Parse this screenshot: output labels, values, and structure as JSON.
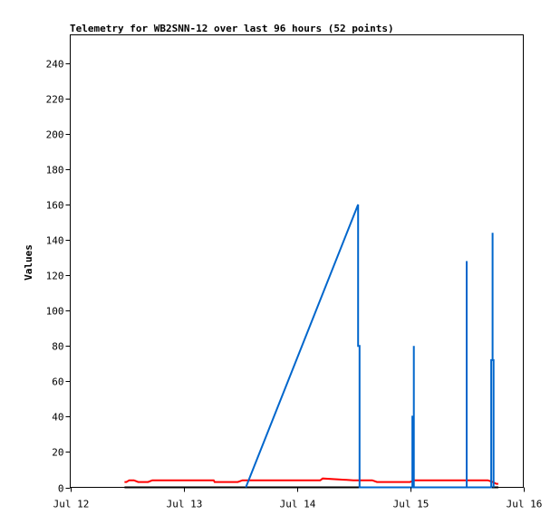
{
  "chart_data": {
    "type": "line",
    "title": "Telemetry for WB2SNN-12 over last 96 hours (52 points)",
    "xlabel": "",
    "ylabel": "Values",
    "ylim": [
      0,
      256
    ],
    "xlim": [
      0,
      96
    ],
    "y_ticks": [
      0,
      20,
      40,
      60,
      80,
      100,
      120,
      140,
      160,
      180,
      200,
      220,
      240
    ],
    "x_ticks": [
      {
        "pos": 0,
        "label": "Jul 12"
      },
      {
        "pos": 24,
        "label": "Jul 13"
      },
      {
        "pos": 48,
        "label": "Jul 14"
      },
      {
        "pos": 72,
        "label": "Jul 15"
      },
      {
        "pos": 96,
        "label": "Jul 16"
      }
    ],
    "grid": false,
    "colors": {
      "black": "#000000",
      "red": "#ff0000",
      "blue": "#0066cc"
    },
    "series": [
      {
        "color": "#000000",
        "points": [
          [
            11.5,
            0
          ],
          [
            90.7,
            0
          ]
        ]
      },
      {
        "color": "#ff0000",
        "points": [
          [
            11.5,
            3
          ],
          [
            11.9,
            3
          ],
          [
            12.5,
            4
          ],
          [
            13.5,
            4
          ],
          [
            14.4,
            3
          ],
          [
            16.5,
            3
          ],
          [
            17.4,
            4
          ],
          [
            24,
            4
          ],
          [
            30.4,
            4
          ],
          [
            30.6,
            3
          ],
          [
            35.5,
            3
          ],
          [
            36.5,
            4
          ],
          [
            48,
            4
          ],
          [
            53,
            4
          ],
          [
            53.5,
            5
          ],
          [
            60,
            4
          ],
          [
            64,
            4
          ],
          [
            65,
            3
          ],
          [
            72,
            3
          ],
          [
            73,
            4
          ],
          [
            84,
            4
          ],
          [
            88.5,
            4
          ],
          [
            89.5,
            3
          ],
          [
            90.3,
            2
          ],
          [
            90.7,
            2
          ]
        ]
      },
      {
        "color": "#0066cc",
        "points": [
          [
            37.2,
            0
          ],
          [
            61.0,
            160
          ],
          [
            61.0,
            80
          ],
          [
            61.3,
            80
          ],
          [
            61.3,
            0
          ],
          [
            72.5,
            0
          ],
          [
            72.5,
            40
          ],
          [
            72.8,
            40
          ],
          [
            72.8,
            80
          ],
          [
            72.8,
            0
          ],
          [
            84.0,
            0
          ],
          [
            84.0,
            128
          ],
          [
            84.0,
            0
          ],
          [
            89.2,
            0
          ],
          [
            89.2,
            72
          ],
          [
            89.5,
            72
          ],
          [
            89.5,
            144
          ],
          [
            89.5,
            72
          ],
          [
            89.7,
            72
          ],
          [
            89.7,
            0
          ]
        ]
      }
    ]
  }
}
